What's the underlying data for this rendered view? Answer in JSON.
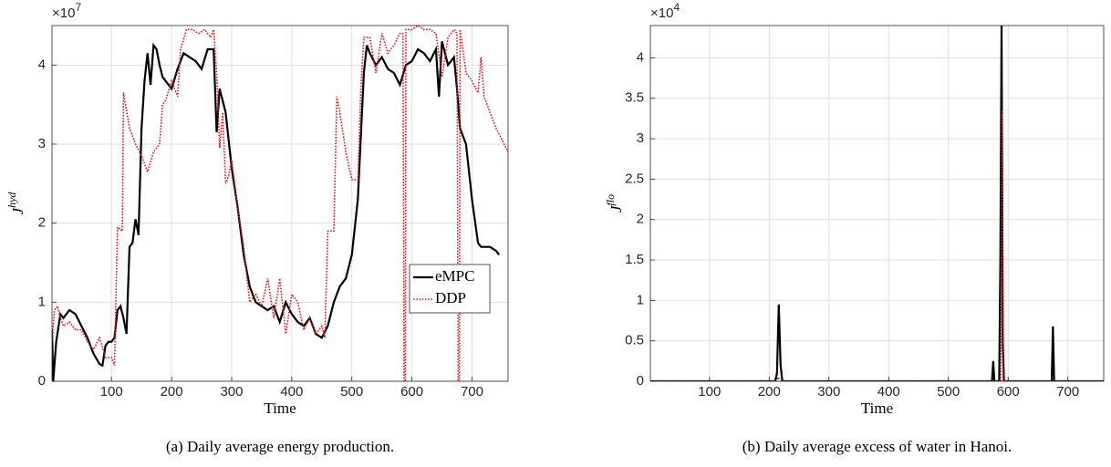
{
  "chart_data": [
    {
      "type": "line",
      "caption": "(a) Daily average energy production.",
      "xlabel": "Time",
      "ylabel": {
        "base": "J",
        "sup": "hyd"
      },
      "multiplier": {
        "base": "×10",
        "exponent": "7"
      },
      "xlim": [
        1,
        760
      ],
      "xticks": [
        100,
        200,
        300,
        400,
        500,
        600,
        700
      ],
      "ylim": [
        0,
        4.5
      ],
      "yticks": [
        0,
        1,
        2,
        3,
        4
      ],
      "grid": true,
      "legend": "lower right",
      "series": [
        {
          "name": "eMPC",
          "color": "#000000",
          "style": "solid",
          "x": [
            1,
            3,
            8,
            15,
            20,
            30,
            40,
            50,
            60,
            70,
            80,
            85,
            90,
            95,
            100,
            105,
            110,
            115,
            120,
            125,
            130,
            135,
            140,
            145,
            150,
            155,
            160,
            165,
            170,
            175,
            180,
            185,
            190,
            200,
            210,
            220,
            230,
            240,
            250,
            260,
            270,
            275,
            280,
            290,
            300,
            310,
            320,
            330,
            340,
            350,
            360,
            370,
            380,
            390,
            400,
            410,
            420,
            430,
            440,
            450,
            460,
            470,
            480,
            490,
            500,
            510,
            520,
            525,
            530,
            540,
            550,
            560,
            570,
            580,
            590,
            600,
            610,
            620,
            630,
            640,
            645,
            650,
            660,
            670,
            675,
            680,
            690,
            700,
            710,
            715,
            730,
            740,
            745
          ],
          "values": [
            0.65,
            0,
            0.5,
            0.85,
            0.8,
            0.9,
            0.85,
            0.7,
            0.55,
            0.35,
            0.22,
            0.2,
            0.45,
            0.5,
            0.5,
            0.55,
            0.9,
            0.95,
            0.8,
            0.6,
            1.7,
            1.75,
            2.05,
            1.85,
            3.2,
            3.8,
            4.15,
            3.75,
            4.25,
            4.2,
            4.0,
            3.85,
            3.8,
            3.7,
            3.95,
            4.15,
            4.1,
            4.05,
            3.95,
            4.2,
            4.2,
            3.15,
            3.7,
            3.4,
            2.7,
            2.2,
            1.6,
            1.2,
            1.0,
            0.95,
            0.9,
            0.95,
            0.75,
            1.0,
            0.85,
            0.75,
            0.7,
            0.8,
            0.6,
            0.55,
            0.7,
            1.0,
            1.2,
            1.3,
            1.6,
            2.3,
            3.9,
            4.25,
            4.15,
            4.0,
            4.1,
            3.95,
            3.9,
            3.75,
            4.0,
            4.05,
            4.2,
            4.15,
            4.05,
            4.2,
            3.6,
            4.3,
            4.0,
            4.1,
            3.7,
            3.2,
            3.0,
            2.3,
            1.75,
            1.7,
            1.7,
            1.65,
            1.6
          ]
        },
        {
          "name": "DDP",
          "color": "#e8141c",
          "style": "dotted",
          "x": [
            1,
            5,
            10,
            15,
            20,
            30,
            40,
            50,
            60,
            70,
            80,
            90,
            100,
            105,
            110,
            118,
            120,
            130,
            140,
            150,
            160,
            170,
            180,
            185,
            190,
            200,
            210,
            215,
            225,
            235,
            245,
            255,
            265,
            270,
            275,
            280,
            285,
            290,
            295,
            300,
            310,
            320,
            330,
            340,
            350,
            360,
            370,
            380,
            390,
            400,
            410,
            420,
            430,
            440,
            450,
            455,
            460,
            470,
            475,
            480,
            490,
            500,
            510,
            515,
            520,
            530,
            540,
            550,
            560,
            570,
            580,
            585,
            587,
            589,
            590,
            600,
            610,
            620,
            630,
            640,
            650,
            660,
            670,
            675,
            677,
            679,
            680,
            690,
            700,
            710,
            715,
            720,
            730,
            740,
            760
          ],
          "values": [
            0.5,
            0.9,
            0.95,
            0.8,
            0.7,
            0.75,
            0.65,
            0.65,
            0.5,
            0.4,
            0.55,
            0.3,
            0.3,
            0.2,
            1.95,
            1.9,
            3.65,
            3.2,
            3.0,
            2.85,
            2.65,
            2.9,
            3.0,
            3.5,
            3.55,
            3.8,
            3.6,
            4.2,
            4.45,
            4.45,
            4.4,
            4.45,
            4.35,
            4.45,
            3.9,
            2.95,
            3.4,
            2.5,
            2.6,
            2.8,
            2.2,
            1.7,
            1.0,
            1.1,
            0.95,
            1.3,
            0.8,
            1.3,
            0.6,
            1.1,
            1.0,
            0.65,
            0.8,
            0.6,
            0.7,
            0.55,
            1.9,
            1.9,
            3.6,
            3.4,
            2.9,
            2.55,
            2.55,
            3.7,
            4.35,
            4.35,
            3.9,
            4.4,
            4.15,
            4.25,
            4.4,
            4.4,
            0,
            0,
            4.45,
            4.45,
            4.5,
            4.45,
            4.45,
            4.4,
            3.85,
            4.35,
            4.45,
            4.4,
            0,
            0,
            4.45,
            3.9,
            3.8,
            3.65,
            4.1,
            3.6,
            3.4,
            3.2,
            2.9
          ]
        }
      ]
    },
    {
      "type": "line",
      "caption": "(b) Daily average excess of water in Hanoi.",
      "xlabel": "Time",
      "ylabel": {
        "base": "J",
        "sup": "flo"
      },
      "multiplier": {
        "base": "×10",
        "exponent": "4"
      },
      "xlim": [
        1,
        760
      ],
      "xticks": [
        100,
        200,
        300,
        400,
        500,
        600,
        700
      ],
      "ylim": [
        0,
        4.4
      ],
      "yticks": [
        0,
        0.5,
        1,
        1.5,
        2,
        2.5,
        3,
        3.5,
        4
      ],
      "grid": true,
      "series": [
        {
          "color": "#000000",
          "style": "solid",
          "x": [
            1,
            210,
            213,
            216,
            219,
            222,
            570,
            573,
            575,
            577,
            585,
            587,
            589,
            591,
            593,
            670,
            673,
            675,
            677,
            680,
            760
          ],
          "values": [
            0,
            0,
            0.1,
            0.95,
            0.2,
            0,
            0,
            0,
            0.25,
            0,
            0,
            1.5,
            4.4,
            0.5,
            0,
            0,
            0,
            0.68,
            0,
            0,
            0
          ]
        },
        {
          "color": "#e8141c",
          "style": "dotted",
          "x": [
            1,
            212,
            215,
            218,
            586,
            588,
            590,
            592,
            760
          ],
          "values": [
            0,
            0,
            0.05,
            0,
            0,
            0,
            3.35,
            0,
            0
          ]
        }
      ]
    }
  ]
}
